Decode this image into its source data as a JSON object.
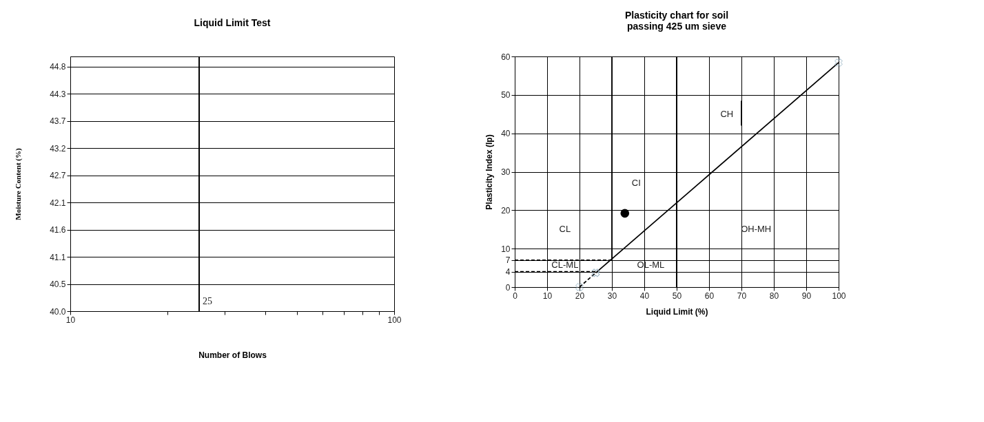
{
  "chart_data": [
    {
      "type": "line",
      "title": "Liquid Limit Test",
      "xlabel": "Number of Blows",
      "ylabel": "Moisture Content (%)",
      "log": "x",
      "xlim": [
        10,
        100
      ],
      "xticks": [
        10,
        {
          "value": 20,
          "label": null
        },
        {
          "value": 30,
          "label": null
        },
        {
          "value": 40,
          "label": null
        },
        {
          "value": 50,
          "label": null
        },
        {
          "value": 60,
          "label": null
        },
        {
          "value": 70,
          "label": null
        },
        {
          "value": 80,
          "label": null
        },
        {
          "value": 90,
          "label": null
        },
        100
      ],
      "ylim": [
        40,
        45.0
      ],
      "yticks": [
        {
          "value": 40,
          "label": "40.0"
        },
        {
          "value": 40.533,
          "label": "40.5"
        },
        {
          "value": 41.067,
          "label": "41.1"
        },
        {
          "value": 41.6,
          "label": "41.6"
        },
        {
          "value": 42.133,
          "label": "42.1"
        },
        {
          "value": 42.667,
          "label": "42.7"
        },
        {
          "value": 43.2,
          "label": "43.2"
        },
        {
          "value": 43.733,
          "label": "43.7"
        },
        {
          "value": 44.267,
          "label": "44.3"
        },
        {
          "value": 44.8,
          "label": "44.8"
        }
      ],
      "grid": "y",
      "ref_lines": [
        {
          "axis": "x",
          "value": 25,
          "label": "25",
          "color": "#000000"
        }
      ]
    },
    {
      "type": "line",
      "title": "Plasticity chart for soil\npassing 425 um sieve",
      "xlabel": "Liquid Limit (%)",
      "ylabel": "Plasticity Index (Ip)",
      "xlim": [
        0,
        100
      ],
      "xticks": [
        0,
        10,
        20,
        30,
        40,
        50,
        60,
        70,
        80,
        90,
        100
      ],
      "ylim": [
        0,
        60
      ],
      "yticks": [
        0,
        4,
        7,
        10,
        20,
        30,
        40,
        50,
        60
      ],
      "grid": true,
      "ref_lines": [
        {
          "axis": "x",
          "value": 50,
          "color": "#000000"
        }
      ],
      "series": [
        {
          "color": "#000000",
          "x": [
            25,
            100
          ],
          "values": [
            3.7,
            58.4
          ],
          "marker": "cross",
          "line_style": "solid"
        },
        {
          "color": "#000000",
          "x": [
            20,
            25
          ],
          "values": [
            0,
            3.7
          ],
          "marker": "cross",
          "line_style": "dashed"
        },
        {
          "color": "#000000",
          "x": [
            30,
            30
          ],
          "values": [
            7.3,
            60
          ],
          "line_style": "solid"
        },
        {
          "color": "#000000",
          "x": [
            0,
            30
          ],
          "values": [
            7,
            7
          ],
          "line_style": "dashed"
        },
        {
          "color": "#000000",
          "x": [
            0,
            25
          ],
          "values": [
            4,
            4
          ],
          "line_style": "dashed"
        },
        {
          "color": "#000000",
          "x": [
            70,
            70
          ],
          "values": [
            42,
            48.5
          ],
          "line_style": "solid"
        },
        {
          "type": "scatter",
          "color": "#000000",
          "x": [
            34
          ],
          "values": [
            19.2
          ],
          "marker": "circle"
        }
      ],
      "annotations": [
        "CL",
        "CI",
        "CH",
        "OH-MH",
        "OL-ML",
        "CL-ML"
      ]
    }
  ]
}
